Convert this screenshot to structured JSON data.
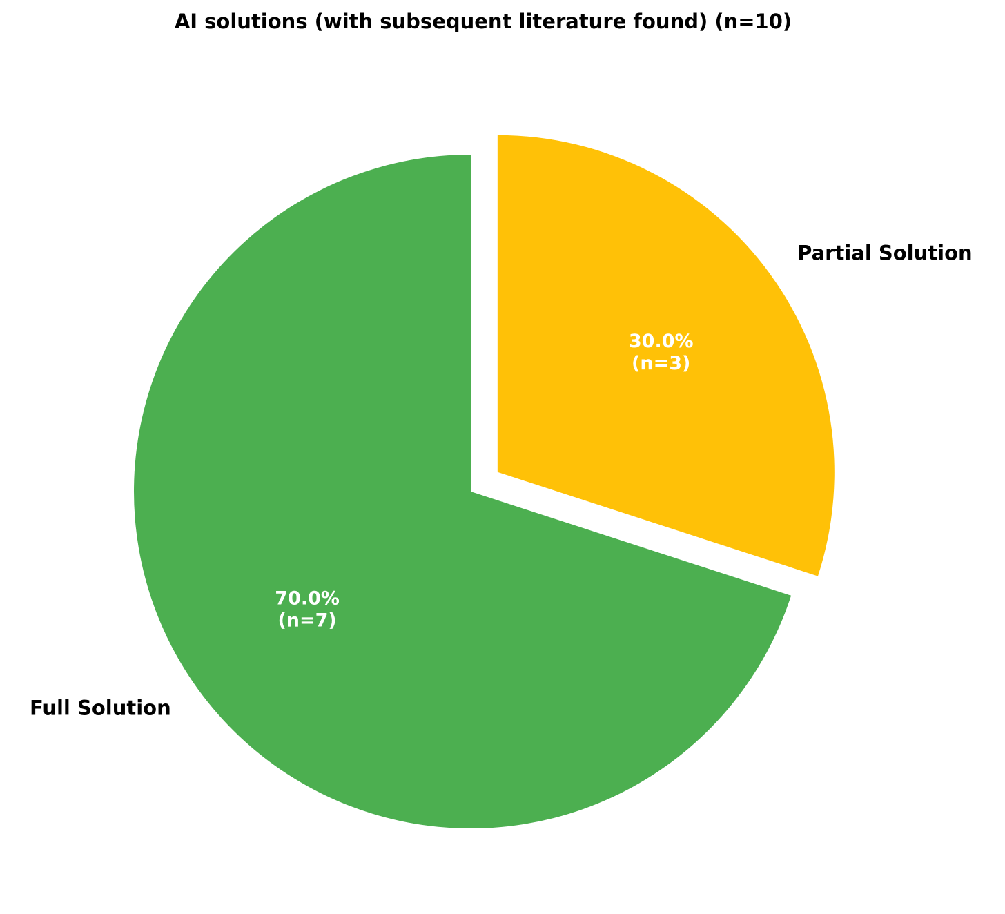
{
  "chart_data": {
    "type": "pie",
    "title": "AI solutions (with subsequent literature found) (n=10)",
    "slices": [
      {
        "label": "Full Solution",
        "value": 7,
        "percent": 70.0,
        "percent_text": "70.0%",
        "count_text": "(n=7)",
        "color": "#4caf50",
        "exploded": false
      },
      {
        "label": "Partial Solution",
        "value": 3,
        "percent": 30.0,
        "percent_text": "30.0%",
        "count_text": "(n=3)",
        "color": "#ffc107",
        "exploded": true
      }
    ],
    "start_angle": "90 degrees (12 o'clock)",
    "direction": "counterclockwise"
  }
}
